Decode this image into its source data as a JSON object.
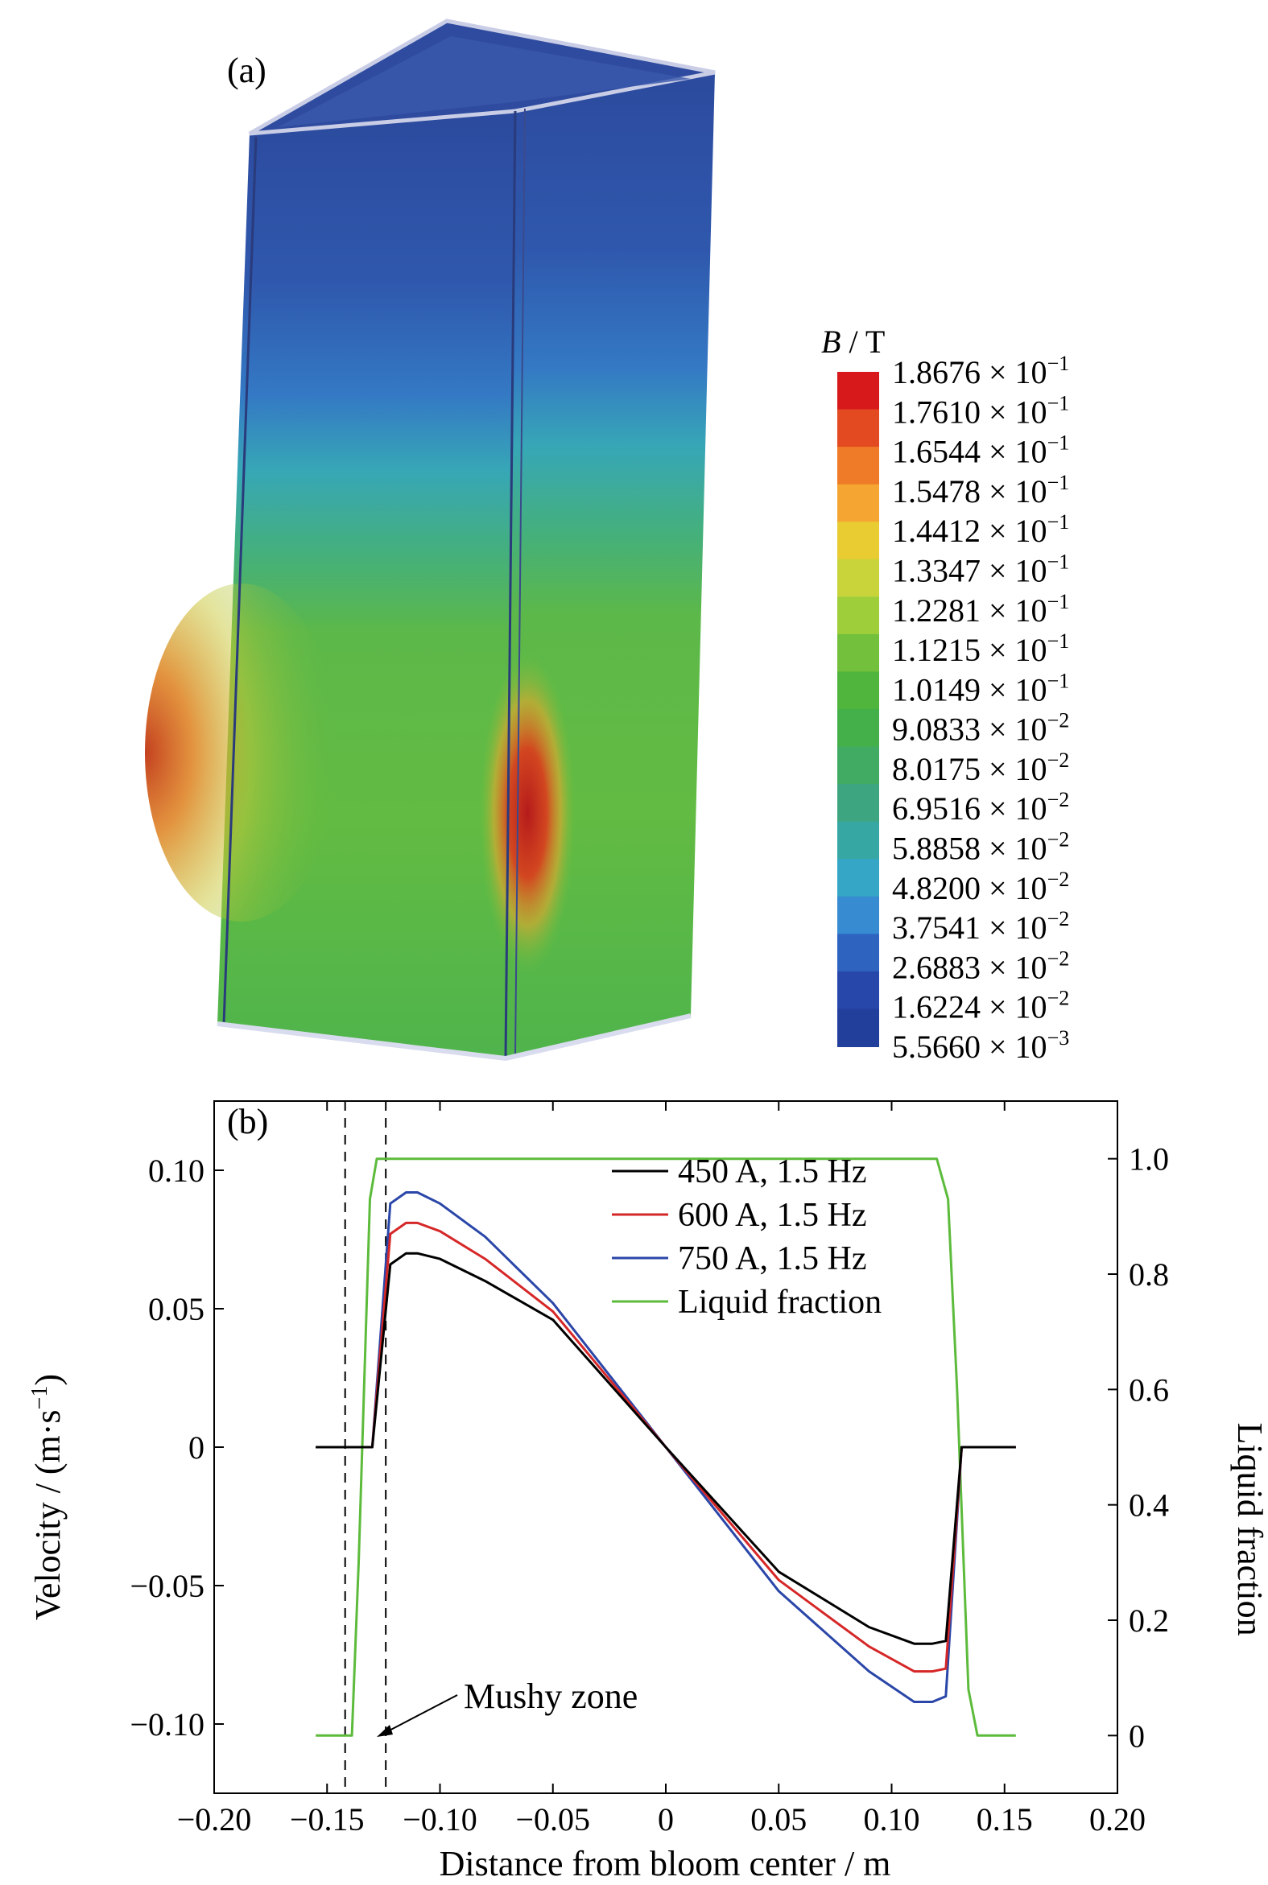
{
  "panel_a": {
    "label": "(a)",
    "colorbar": {
      "title_symbol": "B",
      "title_unit": " / T",
      "ticks": [
        {
          "mantissa": "1.8676",
          "exp": "−1"
        },
        {
          "mantissa": "1.7610",
          "exp": "−1"
        },
        {
          "mantissa": "1.6544",
          "exp": "−1"
        },
        {
          "mantissa": "1.5478",
          "exp": "−1"
        },
        {
          "mantissa": "1.4412",
          "exp": "−1"
        },
        {
          "mantissa": "1.3347",
          "exp": "−1"
        },
        {
          "mantissa": "1.2281",
          "exp": "−1"
        },
        {
          "mantissa": "1.1215",
          "exp": "−1"
        },
        {
          "mantissa": "1.0149",
          "exp": "−1"
        },
        {
          "mantissa": "9.0833",
          "exp": "−2"
        },
        {
          "mantissa": "8.0175",
          "exp": "−2"
        },
        {
          "mantissa": "6.9516",
          "exp": "−2"
        },
        {
          "mantissa": "5.8858",
          "exp": "−2"
        },
        {
          "mantissa": "4.8200",
          "exp": "−2"
        },
        {
          "mantissa": "3.7541",
          "exp": "−2"
        },
        {
          "mantissa": "2.6883",
          "exp": "−2"
        },
        {
          "mantissa": "1.6224",
          "exp": "−2"
        },
        {
          "mantissa": "5.5660",
          "exp": "−3"
        }
      ],
      "colors": [
        "#d7191c",
        "#e34a21",
        "#ef7b28",
        "#f5a531",
        "#e9cb32",
        "#c8d43a",
        "#9fce3b",
        "#72c03c",
        "#4fb53d",
        "#44b04a",
        "#41aa63",
        "#3da680",
        "#37a7a4",
        "#35a6c6",
        "#368bd1",
        "#2f63c0",
        "#2847ab",
        "#233f9c"
      ]
    },
    "bloom_gradient": [
      {
        "stop": 0.0,
        "color": "#2c4a9e"
      },
      {
        "stop": 0.18,
        "color": "#2f58ad"
      },
      {
        "stop": 0.3,
        "color": "#3479c4"
      },
      {
        "stop": 0.38,
        "color": "#37a7b6"
      },
      {
        "stop": 0.47,
        "color": "#45b07a"
      },
      {
        "stop": 0.55,
        "color": "#5cb849"
      },
      {
        "stop": 0.75,
        "color": "#62bb42"
      },
      {
        "stop": 1.0,
        "color": "#4fb44c"
      }
    ]
  },
  "chart_data": {
    "type": "line",
    "panel_label": "(b)",
    "xlabel": "Distance from bloom center / m",
    "ylabel_left_main": "Velocity / (m·s",
    "ylabel_left_sup": "−1",
    "ylabel_left_close": ")",
    "ylabel_right": "Liquid fraction",
    "xlim": [
      -0.2,
      0.2
    ],
    "ylim_left": [
      -0.125,
      0.125
    ],
    "ylim_right": [
      -0.1,
      1.1
    ],
    "xticks": [
      -0.2,
      -0.15,
      -0.1,
      -0.05,
      0,
      0.05,
      0.1,
      0.15,
      0.2
    ],
    "xtick_labels": [
      "−0.20",
      "−0.15",
      "−0.10",
      "−0.05",
      "0",
      "0.05",
      "0.10",
      "0.15",
      "0.20"
    ],
    "yticks_left": [
      -0.1,
      -0.05,
      0,
      0.05,
      0.1
    ],
    "ytick_labels_left": [
      "−0.10",
      "−0.05",
      "0",
      "0.05",
      "0.10"
    ],
    "yticks_right": [
      0,
      0.2,
      0.4,
      0.6,
      0.8,
      1.0
    ],
    "ytick_labels_right": [
      "0",
      "0.2",
      "0.4",
      "0.6",
      "0.8",
      "1.0"
    ],
    "legend_position": "top-right",
    "series": [
      {
        "name": "450 A, 1.5 Hz",
        "axis": "left",
        "color": "#000000",
        "x": [
          -0.155,
          -0.13,
          -0.122,
          -0.115,
          -0.11,
          -0.1,
          -0.08,
          -0.05,
          0,
          0.05,
          0.09,
          0.11,
          0.118,
          0.124,
          0.131,
          0.155
        ],
        "y": [
          0,
          0,
          0.066,
          0.07,
          0.07,
          0.068,
          0.06,
          0.046,
          0,
          -0.045,
          -0.065,
          -0.071,
          -0.071,
          -0.07,
          0,
          0
        ]
      },
      {
        "name": "600 A, 1.5 Hz",
        "axis": "left",
        "color": "#d62728",
        "x": [
          -0.155,
          -0.13,
          -0.122,
          -0.115,
          -0.11,
          -0.1,
          -0.08,
          -0.05,
          0,
          0.05,
          0.09,
          0.11,
          0.118,
          0.124,
          0.131,
          0.155
        ],
        "y": [
          0,
          0,
          0.077,
          0.081,
          0.081,
          0.078,
          0.068,
          0.049,
          0,
          -0.048,
          -0.072,
          -0.081,
          -0.081,
          -0.08,
          0,
          0
        ]
      },
      {
        "name": "750 A, 1.5 Hz",
        "axis": "left",
        "color": "#2a46a8",
        "x": [
          -0.155,
          -0.13,
          -0.122,
          -0.115,
          -0.11,
          -0.1,
          -0.08,
          -0.05,
          0,
          0.05,
          0.09,
          0.11,
          0.118,
          0.124,
          0.131,
          0.155
        ],
        "y": [
          0,
          0,
          0.088,
          0.092,
          0.092,
          0.088,
          0.076,
          0.052,
          0,
          -0.052,
          -0.081,
          -0.092,
          -0.092,
          -0.09,
          0,
          0
        ]
      },
      {
        "name": "Liquid fraction",
        "axis": "right",
        "color": "#5dbb3c",
        "x": [
          -0.155,
          -0.139,
          -0.136,
          -0.131,
          -0.128,
          -0.124,
          0.12,
          0.125,
          0.129,
          0.134,
          0.138,
          0.155
        ],
        "y": [
          0,
          0,
          0.3,
          0.93,
          1.0,
          1.0,
          1.0,
          0.93,
          0.6,
          0.08,
          0,
          0
        ]
      }
    ],
    "vlines": [
      -0.142,
      -0.124
    ],
    "annotation": "Mushy zone"
  }
}
